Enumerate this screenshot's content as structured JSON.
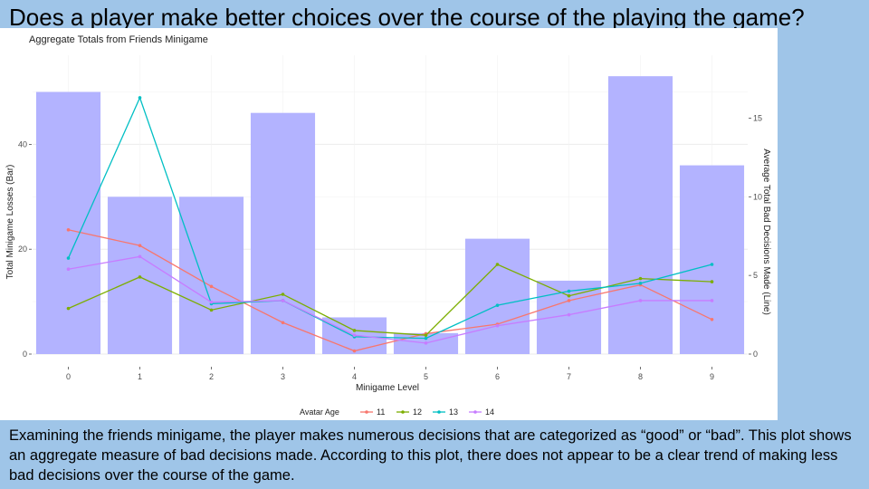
{
  "slide": {
    "title": "Does a player make better choices over the course of the playing the game?",
    "caption": "Examining the friends minigame, the player makes numerous decisions that are categorized as “good” or “bad”. This plot shows an aggregate measure of bad decisions made. According to this plot, there does not appear to be a clear trend of making less bad decisions over the course of the game."
  },
  "chart_data": {
    "type": "bar",
    "title": "Aggregate Totals from Friends Minigame",
    "xlabel": "Minigame Level",
    "ylabel": "Total Minigame Losses (Bar)",
    "y2label": "Average Total Bad Decisions Made (Line)",
    "categories": [
      "0",
      "1",
      "2",
      "3",
      "4",
      "5",
      "6",
      "7",
      "8",
      "9"
    ],
    "values": [
      50,
      30,
      30,
      46,
      7,
      4,
      22,
      14,
      53,
      36
    ],
    "ylim": [
      0,
      57
    ],
    "yticks": [
      0,
      20,
      40
    ],
    "y2lim": [
      0,
      19
    ],
    "y2ticks": [
      0,
      5,
      10,
      15
    ],
    "grid": true,
    "legend_position": "bottom",
    "legend_title": "Avatar Age",
    "bar_color": "#b3b3ff",
    "lines": [
      {
        "name": "11",
        "color": "#f8766d",
        "values": [
          7.9,
          6.9,
          4.3,
          2.0,
          0.2,
          1.3,
          1.9,
          3.4,
          4.4,
          2.2
        ]
      },
      {
        "name": "12",
        "color": "#7cae00",
        "values": [
          2.9,
          4.9,
          2.8,
          3.8,
          1.5,
          1.2,
          5.7,
          3.7,
          4.8,
          4.6
        ]
      },
      {
        "name": "13",
        "color": "#00bfc4",
        "values": [
          6.1,
          16.3,
          3.2,
          3.4,
          1.1,
          1.0,
          3.1,
          4.0,
          4.5,
          5.7
        ]
      },
      {
        "name": "14",
        "color": "#c77cff",
        "values": [
          5.4,
          6.2,
          3.3,
          3.4,
          1.2,
          0.7,
          1.8,
          2.5,
          3.4,
          3.4
        ]
      }
    ]
  }
}
